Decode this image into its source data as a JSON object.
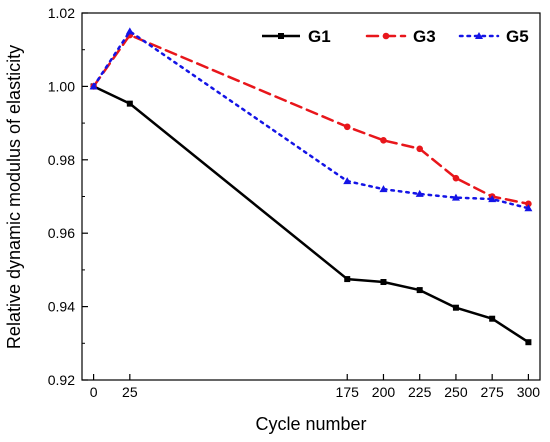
{
  "chart_data": {
    "type": "line",
    "title": "",
    "xlabel": "Cycle number",
    "ylabel": "Relative dynamic modulus of elasticity",
    "x": [
      0,
      25,
      175,
      200,
      225,
      250,
      275,
      300
    ],
    "xticks": [
      0,
      25,
      175,
      200,
      225,
      250,
      275,
      300
    ],
    "xtick_labels": [
      "0",
      "25",
      "175",
      "200",
      "225",
      "250",
      "275",
      "300"
    ],
    "xlim": [
      -8,
      308
    ],
    "ylim": [
      0.92,
      1.02
    ],
    "yticks": [
      0.92,
      0.94,
      0.96,
      0.98,
      1.0,
      1.02
    ],
    "ytick_labels": [
      "0.92",
      "0.94",
      "0.96",
      "0.98",
      "1.00",
      "1.02"
    ],
    "grid": false,
    "legend_position": "top-right",
    "series": [
      {
        "name": "G1",
        "color": "#000000",
        "line_style": "solid",
        "marker": "square",
        "values": [
          1.0,
          0.9953,
          0.9475,
          0.9467,
          0.9445,
          0.9397,
          0.9367,
          0.9303
        ]
      },
      {
        "name": "G3",
        "color": "#e8161b",
        "line_style": "dashed",
        "marker": "circle",
        "values": [
          1.0,
          1.014,
          0.989,
          0.9853,
          0.983,
          0.975,
          0.97,
          0.968
        ]
      },
      {
        "name": "G5",
        "color": "#1414e6",
        "line_style": "dotted",
        "marker": "triangle",
        "values": [
          1.0,
          1.015,
          0.9742,
          0.972,
          0.9707,
          0.9697,
          0.9693,
          0.9668
        ]
      }
    ]
  }
}
